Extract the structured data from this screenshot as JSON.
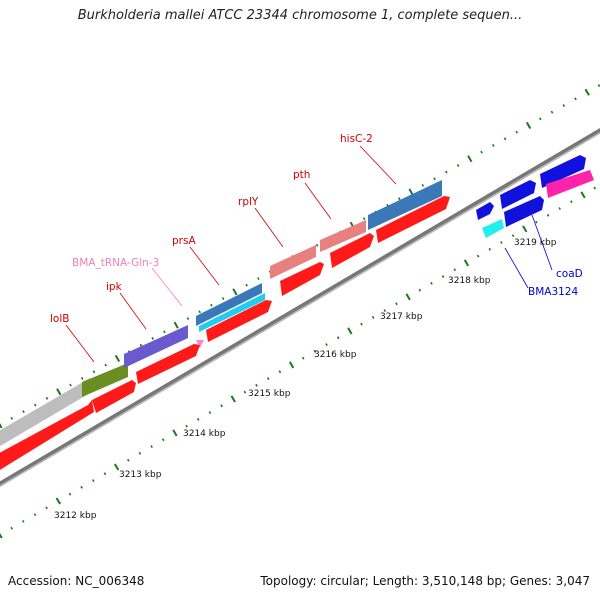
{
  "title": "Burkholderia mallei ATCC 23344 chromosome 1, complete sequen...",
  "footer": {
    "accession": "Accession: NC_006348",
    "summary": "Topology: circular; Length: 3,510,148 bp; Genes: 3,047"
  },
  "kbp_labels": [
    "3212 kbp",
    "3213 kbp",
    "3214 kbp",
    "3215 kbp",
    "3216 kbp",
    "3217 kbp",
    "3218 kbp",
    "3219 kbp"
  ],
  "gene_labels": [
    {
      "name": "lolB",
      "color": "#d40000"
    },
    {
      "name": "ipk",
      "color": "#d40000"
    },
    {
      "name": "BMA_tRNA-Gln-3",
      "color": "#ee82b8"
    },
    {
      "name": "prsA",
      "color": "#d40000"
    },
    {
      "name": "rplY",
      "color": "#d40000"
    },
    {
      "name": "pth",
      "color": "#d40000"
    },
    {
      "name": "hisC-2",
      "color": "#d40000"
    },
    {
      "name": "coaD",
      "color": "#0000cc"
    },
    {
      "name": "BMA3124",
      "color": "#0000cc"
    }
  ],
  "colors": {
    "cds": "#ff1a1a",
    "backbone": "#808080",
    "tick": "#1a7a1a"
  }
}
